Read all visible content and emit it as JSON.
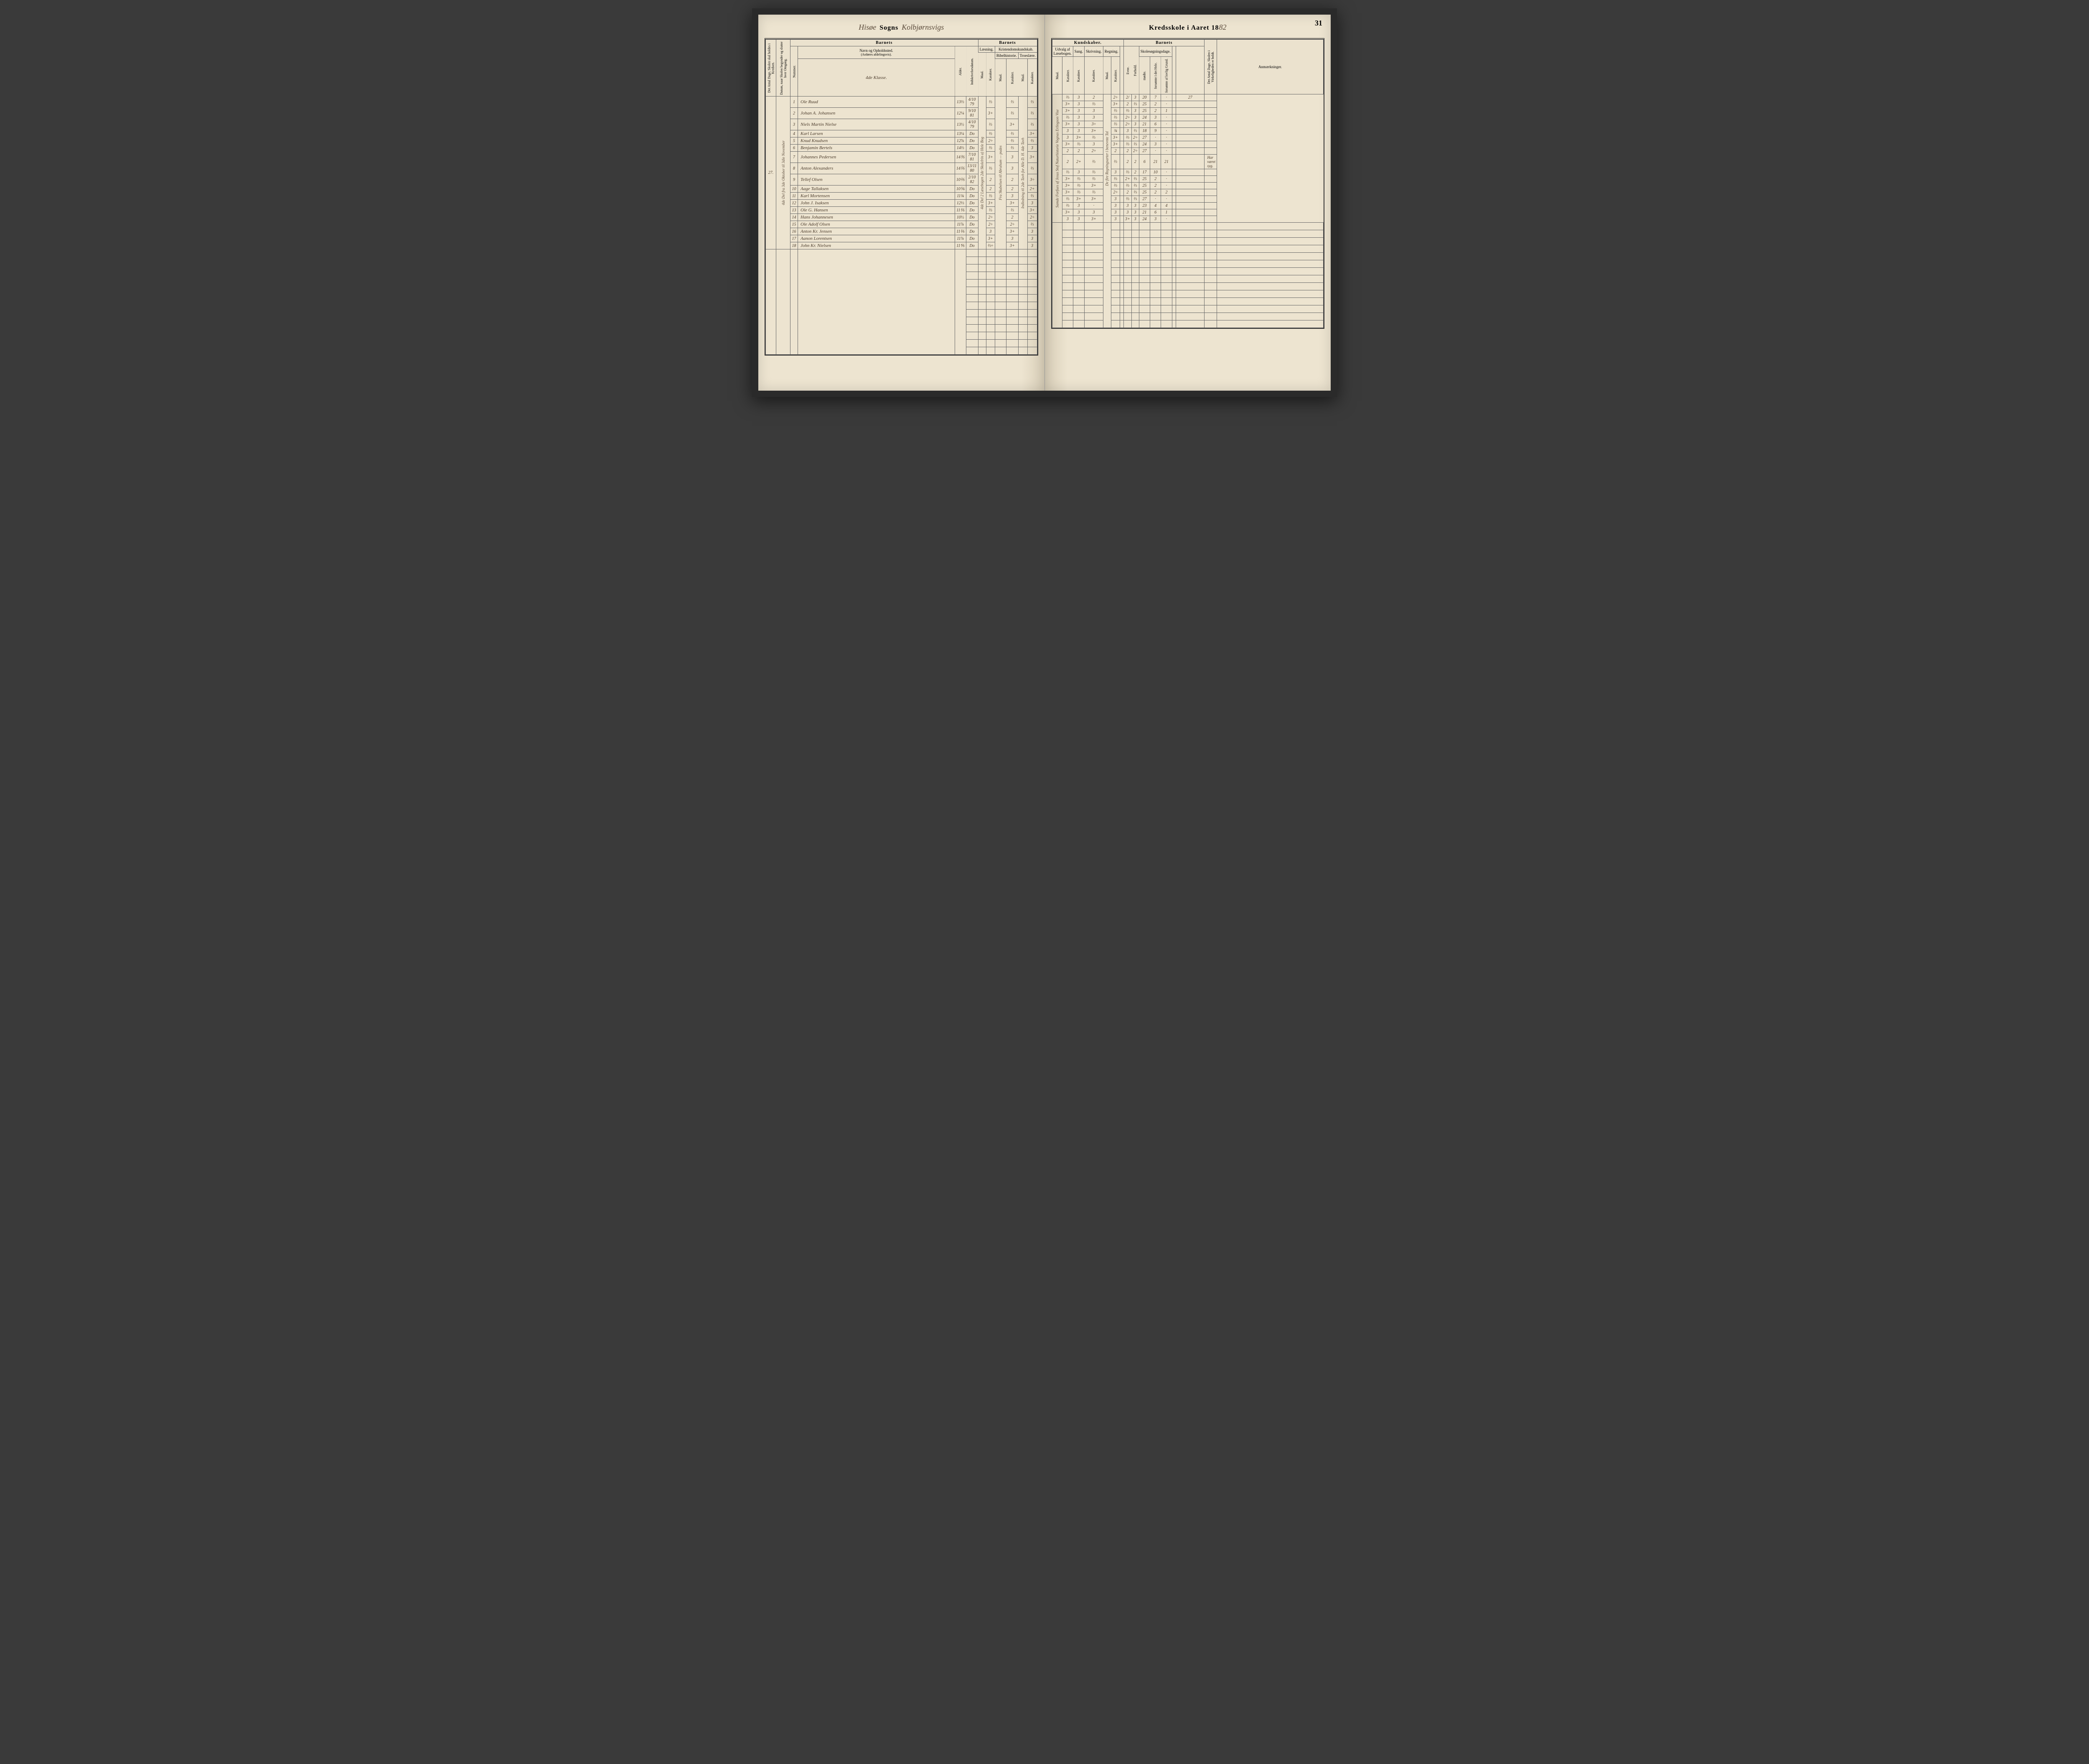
{
  "page_number": "31",
  "header_left": {
    "script1": "Hisøe",
    "print1": "Sogns",
    "script2": "Kolbjørnsvigs"
  },
  "header_right": {
    "print": "Kredsskole i Aaret 18",
    "script": "82"
  },
  "columns_left": {
    "antal_dage": "Det Antal Dage, Skolen skal holdes i Kredsen.",
    "datum": "Datum, naar Skolen begynder og slutter hver Omgang.",
    "barnets": "Barnets",
    "nummer": "Nummer.",
    "navn": "Navn og Opholdssted.",
    "navn_sub": "(Anføres afdelingsvis).",
    "klasse": "4de Klasse.",
    "alder": "Alder.",
    "indsk": "Indskrivelsesdatum.",
    "barnets2": "Barnets",
    "laesning": "Læsning.",
    "kristendom": "Kristendomskundskab.",
    "maal": "Maal.",
    "karakter": "Karakter.",
    "bibel": "Bibelhistorie.",
    "troes": "Troeslære."
  },
  "columns_right": {
    "kundskaber": "Kundskaber.",
    "udvalg": "Udvalg af Læsebogen.",
    "sang": "Sang.",
    "skriv": "Skrivning.",
    "regning": "Regning.",
    "barnets": "Barnets",
    "skolesog": "Skolesøgningsdage.",
    "evne": "Evne.",
    "forhold": "Forhold.",
    "modte": "mødte.",
    "forsomte1": "forsømte i det Hele.",
    "forsomte2": "forsømte af lovlig Grund.",
    "antal_dage": "Det Antal Dage, Skolen i Virkeligheden er holdt.",
    "anm": "Anmærkninger.",
    "maal": "Maal.",
    "karakter": "Karakter."
  },
  "left_margin": {
    "count": "27.",
    "note": "4de Del fra 3de Oktober til 3die November"
  },
  "rows": [
    {
      "n": "1",
      "navn": "Ole Ruud",
      "alder": "13⅔",
      "indsk": "4/10 79",
      "laes": "⅔",
      "bibel_k": "⅔",
      "troes_k": "⅔",
      "udv_k": "⅔",
      "sang": "3",
      "skriv": "2",
      "regn_k": "2÷",
      "evne": "2/",
      "forh": "3",
      "modte": "20",
      "fors1": "7",
      "fors2": "·",
      "dage": "27",
      "anm": ""
    },
    {
      "n": "2",
      "navn": "Johan A. Johansen",
      "alder": "12¼",
      "indsk": "9/10 81",
      "laes": "3+",
      "bibel_k": "⅔",
      "troes_k": "⅔",
      "udv_k": "3+",
      "sang": "3",
      "skriv": "⅔",
      "regn_k": "3+",
      "evne": "2",
      "forh": "⅔",
      "modte": "25",
      "fors1": "2",
      "fors2": "·",
      "dage": "",
      "anm": ""
    },
    {
      "n": "3",
      "navn": "Niels Martin Nielse",
      "alder": "13½",
      "indsk": "4/10 79",
      "laes": "⅔",
      "bibel_k": "3+",
      "troes_k": "⅔",
      "udv_k": "3+",
      "sang": "3",
      "skriv": "3",
      "regn_k": "⅔",
      "evne": "⅔",
      "forh": "3",
      "modte": "25",
      "fors1": "2",
      "fors2": "1",
      "dage": "",
      "anm": ""
    },
    {
      "n": "4",
      "navn": "Karl Larsen",
      "alder": "13¼",
      "indsk": "Do",
      "laes": "⅔",
      "bibel_k": "⅔",
      "troes_k": "3+",
      "udv_k": "⅔",
      "sang": "3",
      "skriv": "3",
      "regn_k": "⅔",
      "evne": "2÷",
      "forh": "3",
      "modte": "24",
      "fors1": "3",
      "fors2": "·",
      "dage": "",
      "anm": ""
    },
    {
      "n": "5",
      "navn": "Knud Knudsen",
      "alder": "12⅞",
      "indsk": "Do",
      "laes": "2÷",
      "bibel_k": "⅔",
      "troes_k": "⅔",
      "udv_k": "3+",
      "sang": "3",
      "skriv": "3÷",
      "regn_k": "⅔",
      "evne": "2÷",
      "forh": "3",
      "modte": "21",
      "fors1": "6",
      "fors2": "·",
      "dage": "",
      "anm": ""
    },
    {
      "n": "6",
      "navn": "Benjamin Bertels",
      "alder": "14⅔",
      "indsk": "Do",
      "laes": "⅔",
      "bibel_k": "⅔",
      "troes_k": "3",
      "udv_k": "3",
      "sang": "3",
      "skriv": "3+",
      "regn_k": "¾",
      "evne": "3",
      "forh": "⅔",
      "modte": "18",
      "fors1": "9",
      "fors2": "·",
      "dage": "",
      "anm": ""
    },
    {
      "n": "7",
      "navn": "Johannes Pedersen",
      "alder": "14⅗",
      "indsk": "7/10 81",
      "laes": "3+",
      "bibel_k": "3",
      "troes_k": "3+",
      "udv_k": "3",
      "sang": "3+",
      "skriv": "⅔",
      "regn_k": "3+",
      "evne": "⅔",
      "forh": "2÷",
      "modte": "27",
      "fors1": "·",
      "fors2": "·",
      "dage": "",
      "anm": ""
    },
    {
      "n": "8",
      "navn": "Anton Alexanders",
      "alder": "14⅖",
      "indsk": "13/11 80",
      "laes": "⅔",
      "bibel_k": "3",
      "troes_k": "⅔",
      "udv_k": "3+",
      "sang": "⅔",
      "skriv": "3",
      "regn_k": "3+",
      "evne": "⅔",
      "forh": "⅔",
      "modte": "24",
      "fors1": "3",
      "fors2": "·",
      "dage": "",
      "anm": ""
    },
    {
      "n": "9",
      "navn": "Tellef Olsen",
      "alder": "10⅖",
      "indsk": "2/10 82",
      "laes": "2",
      "bibel_k": "2",
      "troes_k": "3÷",
      "udv_k": "2",
      "sang": "2",
      "skriv": "2÷",
      "regn_k": "2",
      "evne": "2",
      "forh": "2÷",
      "modte": "27",
      "fors1": "·",
      "fors2": "·",
      "dage": "",
      "anm": ""
    },
    {
      "n": "10",
      "navn": "Aage Tallaksen",
      "alder": "10⅚",
      "indsk": "Do",
      "laes": "2",
      "bibel_k": "2",
      "troes_k": "2+",
      "udv_k": "2",
      "sang": "2+",
      "skriv": "⅔",
      "regn_k": "⅔",
      "evne": "2",
      "forh": "2",
      "modte": "6",
      "fors1": "21",
      "fors2": "21",
      "dage": "",
      "anm": "Har været syg."
    },
    {
      "n": "11",
      "navn": "Karl Mortensen",
      "alder": "11¾",
      "indsk": "Do",
      "laes": "⅔",
      "bibel_k": "3",
      "troes_k": "⅔",
      "udv_k": "⅔",
      "sang": "3",
      "skriv": "⅔",
      "regn_k": "3",
      "evne": "⅔",
      "forh": "2",
      "modte": "17",
      "fors1": "10",
      "fors2": "·",
      "dage": "",
      "anm": ""
    },
    {
      "n": "12",
      "navn": "John J. Isaksen",
      "alder": "12⅓",
      "indsk": "Do",
      "laes": "3+",
      "bibel_k": "3+",
      "troes_k": "3",
      "udv_k": "3+",
      "sang": "⅔",
      "skriv": "⅔",
      "regn_k": "⅔",
      "evne": "2+",
      "forh": "⅔",
      "modte": "25",
      "fors1": "2",
      "fors2": "·",
      "dage": "",
      "anm": ""
    },
    {
      "n": "13",
      "navn": "Ole G. Hansen",
      "alder": "11⅖",
      "indsk": "Do",
      "laes": "⅔",
      "bibel_k": "⅔",
      "troes_k": "3+",
      "udv_k": "3+",
      "sang": "⅔",
      "skriv": "3+",
      "regn_k": "⅔",
      "evne": "⅔",
      "forh": "⅔",
      "modte": "25",
      "fors1": "2",
      "fors2": "·",
      "dage": "",
      "anm": ""
    },
    {
      "n": "14",
      "navn": "Hans Johannesen",
      "alder": "10½",
      "indsk": "Do",
      "laes": "2÷",
      "bibel_k": "2",
      "troes_k": "2÷",
      "udv_k": "3+",
      "sang": "⅔",
      "skriv": "⅔",
      "regn_k": "2÷",
      "evne": "2",
      "forh": "⅔",
      "modte": "25",
      "fors1": "2",
      "fors2": "2",
      "dage": "",
      "anm": ""
    },
    {
      "n": "15",
      "navn": "Ole Adolf Olsen",
      "alder": "11⅞",
      "indsk": "Do",
      "laes": "2÷",
      "bibel_k": "2÷",
      "troes_k": "⅔",
      "udv_k": "⅔",
      "sang": "3+",
      "skriv": "3+",
      "regn_k": "3",
      "evne": "⅔",
      "forh": "⅔",
      "modte": "27",
      "fors1": "·",
      "fors2": "·",
      "dage": "",
      "anm": ""
    },
    {
      "n": "16",
      "navn": "Anton Kr. Jensen",
      "alder": "11⅖",
      "indsk": "Do",
      "laes": "3",
      "bibel_k": "3+",
      "troes_k": "3",
      "udv_k": "⅔",
      "sang": "3",
      "skriv": "·",
      "regn_k": "3",
      "evne": "3",
      "forh": "3",
      "modte": "23",
      "fors1": "4",
      "fors2": "4",
      "dage": "",
      "anm": ""
    },
    {
      "n": "17",
      "navn": "Aanon Lorentsen",
      "alder": "11⅞",
      "indsk": "Do",
      "laes": "3+",
      "bibel_k": "3",
      "troes_k": "3",
      "udv_k": "3+",
      "sang": "3",
      "skriv": "3",
      "regn_k": "3",
      "evne": "3",
      "forh": "3",
      "modte": "21",
      "fors1": "6",
      "fors2": "1",
      "dage": "",
      "anm": ""
    },
    {
      "n": "18",
      "navn": "John Kr. Nielsen",
      "alder": "11⅘",
      "indsk": "Do",
      "laes": "⅔÷",
      "bibel_k": "3+",
      "troes_k": "3",
      "udv_k": "3",
      "sang": "3",
      "skriv": "3+",
      "regn_k": "3",
      "evne": "3+",
      "forh": "3",
      "modte": "24",
      "fors1": "3",
      "fors2": "·",
      "dage": "",
      "anm": ""
    }
  ],
  "vertical_notes": {
    "laes_maal": "4de Del 2 Læsebogen 2de Skolelrin a) Hele Bog",
    "bibel_maal": "Fra Skabelsen til Abraham — pudes",
    "troes_maal": "Indledning til 2de Tavh for Alle D. H. 4de Tavh",
    "udvalg_maal": "Samde Forfues af Jesus Stof Naturhistorie Vognas Erlingson Vise",
    "regning_maal": "De fire Regningsarter i benevnte Tal",
    "b_mark": "b)"
  },
  "colors": {
    "paper": "#ede4d0",
    "ink": "#333333",
    "script": "#4a3a2a",
    "border": "#666666"
  }
}
